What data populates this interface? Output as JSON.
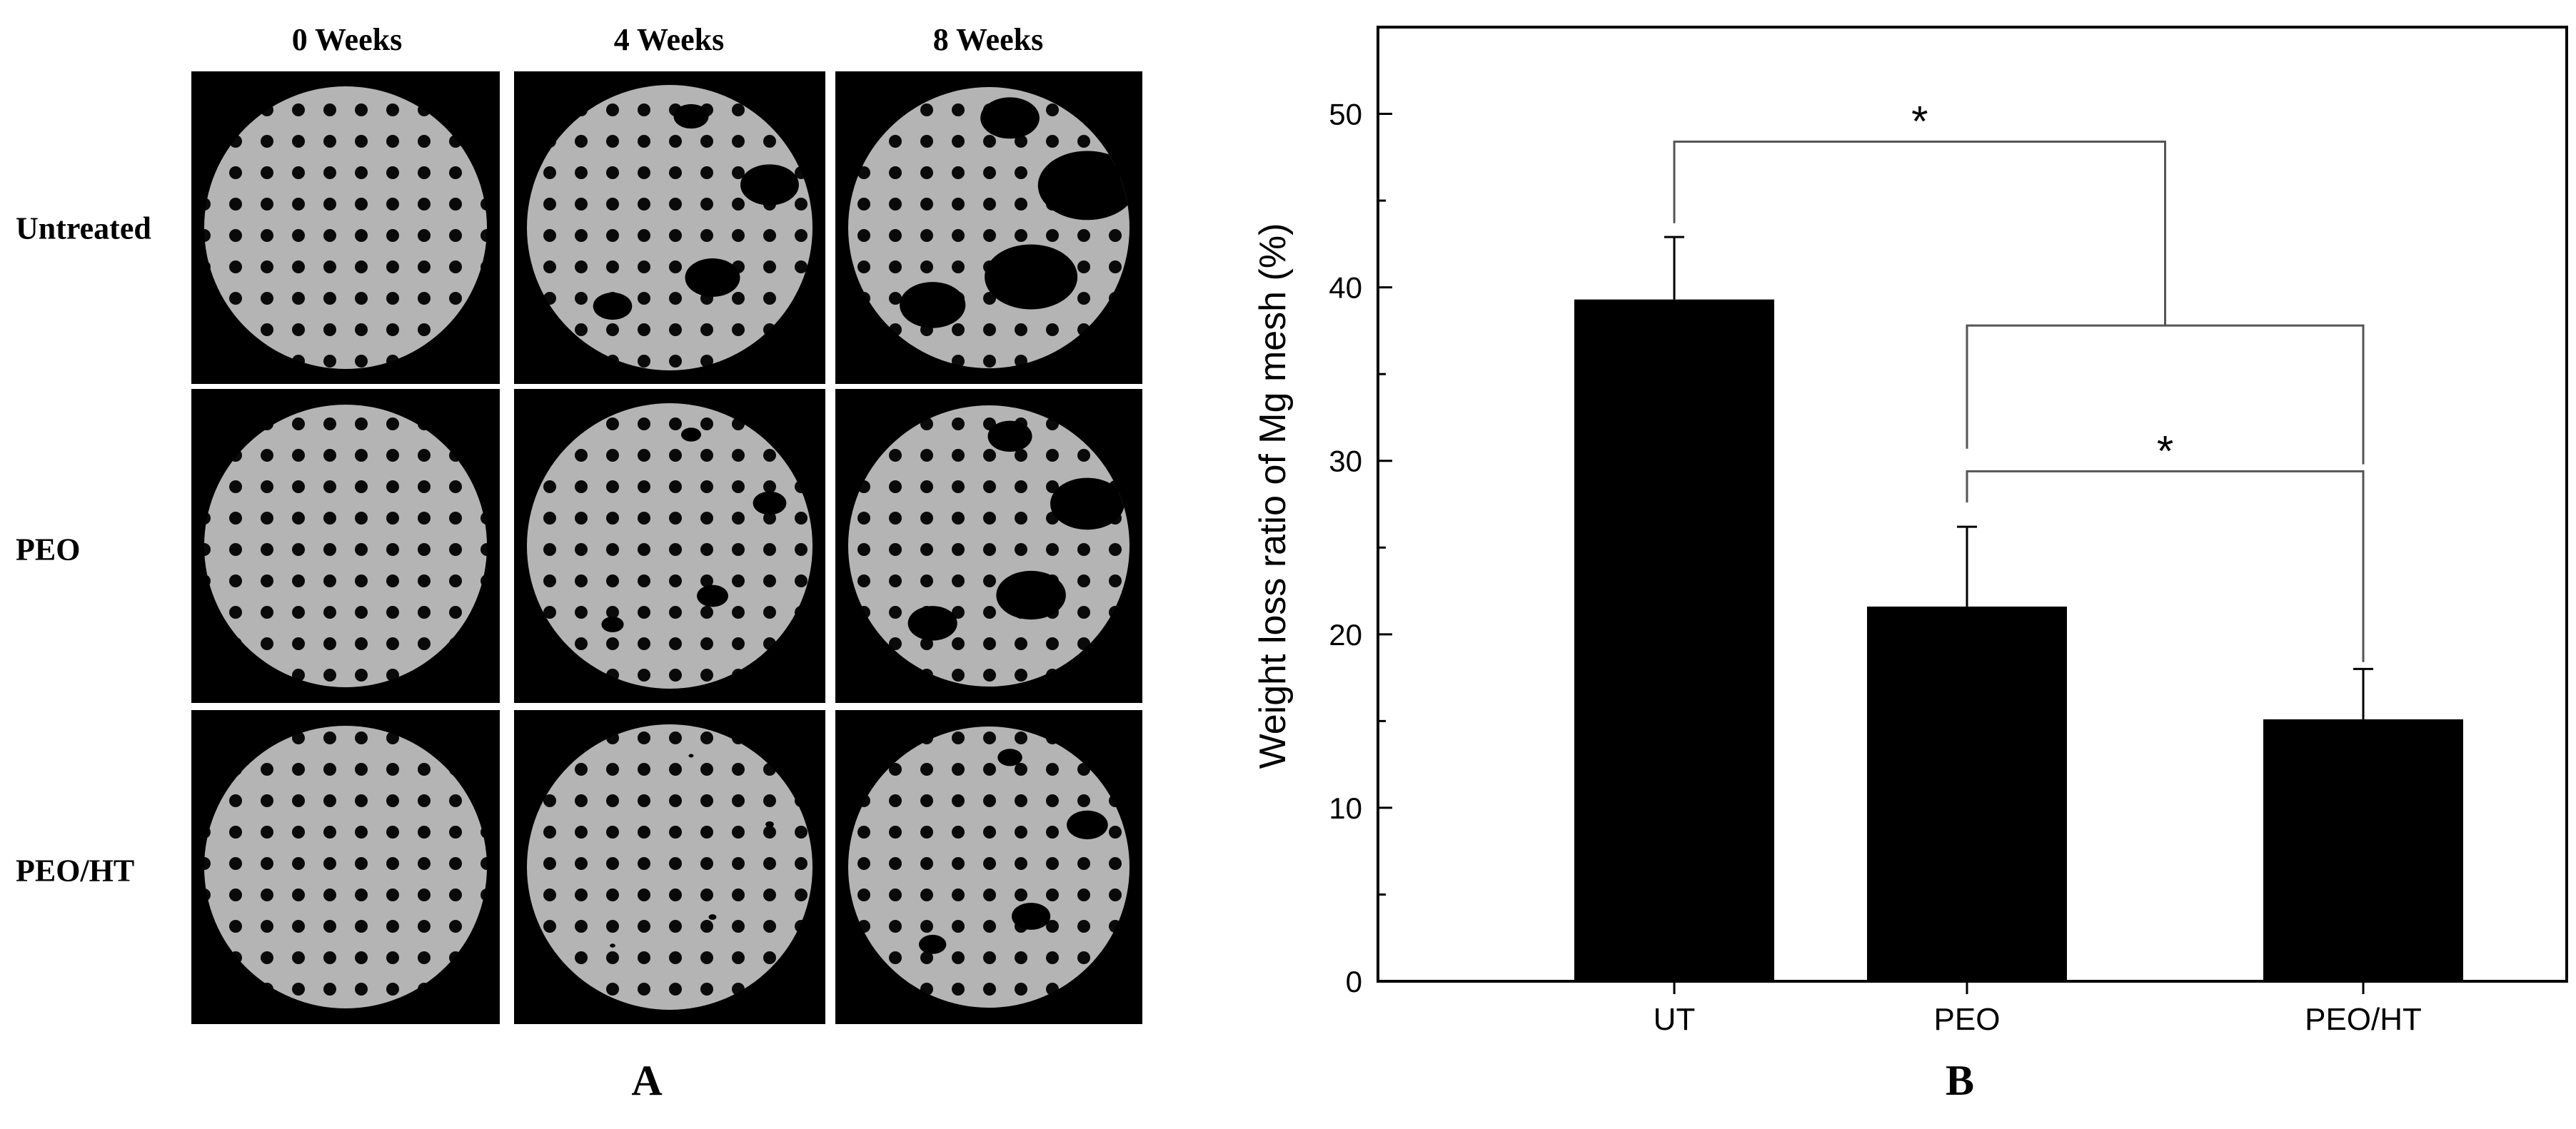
{
  "panel_a": {
    "label": "A",
    "columns": [
      "0 Weeks",
      "4 Weeks",
      "8 Weeks"
    ],
    "rows": [
      "Untreated",
      "PEO",
      "PEO/HT"
    ],
    "image_description_note": "",
    "corrosion_level": [
      [
        0,
        0.35,
        0.6
      ],
      [
        0,
        0.2,
        0.45
      ],
      [
        0,
        0.05,
        0.25
      ]
    ]
  },
  "panel_b": {
    "label": "B"
  },
  "chart_data": {
    "type": "bar",
    "categories": [
      "UT",
      "PEO",
      "PEO/HT"
    ],
    "values": [
      39.3,
      21.6,
      15.1
    ],
    "error": [
      3.6,
      4.6,
      2.9
    ],
    "ylabel": "Weight loss ratio of Mg mesh (%)",
    "xlabel": "",
    "ylim": [
      0,
      55
    ],
    "yticks": [
      0,
      10,
      20,
      30,
      40,
      50
    ],
    "bar_color": "#000000",
    "significance": [
      {
        "from": "UT",
        "to": [
          "PEO",
          "PEO/HT"
        ],
        "label": "*"
      },
      {
        "from": "PEO",
        "to": "PEO/HT",
        "label": "*"
      }
    ]
  }
}
